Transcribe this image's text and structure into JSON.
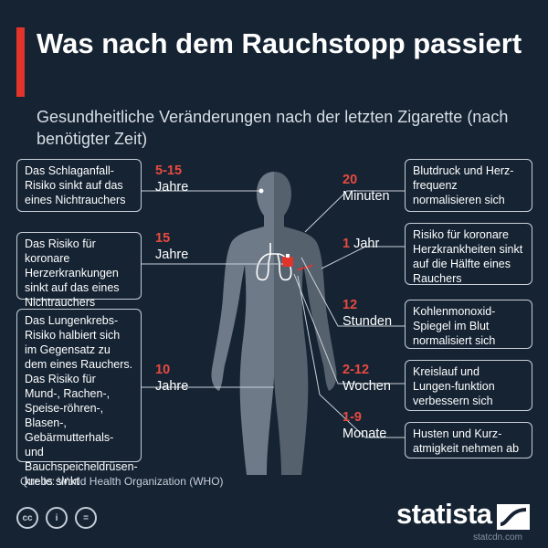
{
  "title": "Was nach dem Rauchstopp passiert",
  "subtitle": "Gesundheitliche Veränderungen nach der letzten Zigarette (nach benötigter Zeit)",
  "left": [
    {
      "time_num": "5-15",
      "time_unit": "Jahre",
      "text": "Das Schlaganfall-Risiko sinkt auf das eines Nichtrauchers"
    },
    {
      "time_num": "15",
      "time_unit": "Jahre",
      "text": "Das Risiko für koronare Herzerkrankungen sinkt auf das eines Nichtrauchers"
    },
    {
      "time_num": "10",
      "time_unit": "Jahre",
      "text": "Das Lungenkrebs-Risiko halbiert sich im Gegensatz zu dem eines Rauchers. Das Risiko für Mund-, Rachen-, Speise-röhren-, Blasen-, Gebärmutterhals- und Bauchspeicheldrüsen-krebs sinkt"
    }
  ],
  "right": [
    {
      "time_num": "20",
      "time_unit": "Minuten",
      "text": "Blutdruck und Herz-frequenz normalisieren sich"
    },
    {
      "time_num": "1",
      "time_unit": "Jahr",
      "text": "Risiko für koronare Herzkrankheiten sinkt auf die Hälfte eines Rauchers"
    },
    {
      "time_num": "12",
      "time_unit": "Stunden",
      "text": "Kohlenmonoxid-Spiegel im Blut normalisiert sich"
    },
    {
      "time_num": "2-12",
      "time_unit": "Wochen",
      "text": "Kreislauf und Lungen-funktion verbessern sich"
    },
    {
      "time_num": "1-9",
      "time_unit": "Monate",
      "text": "Husten und Kurz-atmigkeit nehmen ab"
    }
  ],
  "source": "Quelle: World Health Organization (WHO)",
  "license_icons": [
    "cc-icon",
    "by-icon",
    "nd-icon"
  ],
  "license_labels": [
    "cc",
    "i",
    "="
  ],
  "brand": "statista",
  "watermark": "statcdn.com",
  "colors": {
    "background": "#152333",
    "accent": "#e3342c",
    "body_light": "#6e7a88",
    "body_dark": "#56616e"
  }
}
